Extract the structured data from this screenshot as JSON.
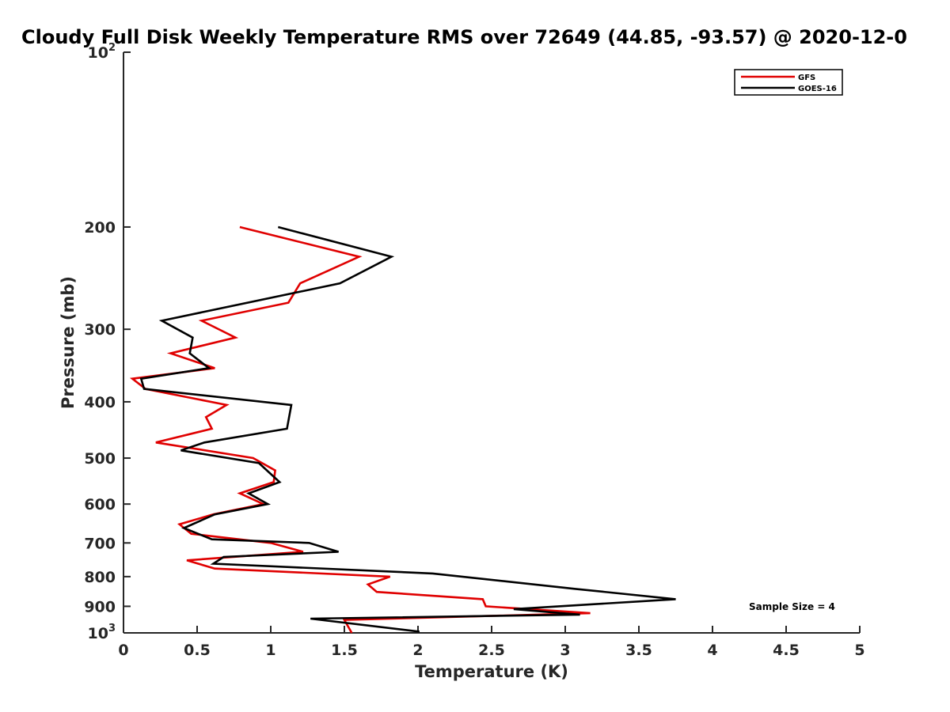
{
  "chart_data": {
    "type": "line",
    "title": "Cloudy Full Disk Weekly Temperature RMS over 72649 (44.85, -93.57) @ 2020-12-0",
    "xlabel": "Temperature (K)",
    "ylabel": "Pressure (mb)",
    "xlim": [
      0,
      5
    ],
    "ylim": [
      1000,
      100
    ],
    "y_scale": "log",
    "y_reversed": true,
    "grid": false,
    "legend_position": "top-right",
    "x_ticks": [
      0,
      0.5,
      1,
      1.5,
      2,
      2.5,
      3,
      3.5,
      4,
      4.5,
      5
    ],
    "x_tick_labels": [
      "0",
      "0.5",
      "1",
      "1.5",
      "2",
      "2.5",
      "3",
      "3.5",
      "4",
      "4.5",
      "5"
    ],
    "y_ticks": [
      {
        "value": 100,
        "base": "10",
        "exp": "2"
      },
      {
        "value": 200,
        "label": "200"
      },
      {
        "value": 300,
        "label": "300"
      },
      {
        "value": 400,
        "label": "400"
      },
      {
        "value": 500,
        "label": "500"
      },
      {
        "value": 600,
        "label": "600"
      },
      {
        "value": 700,
        "label": "700"
      },
      {
        "value": 800,
        "label": "800"
      },
      {
        "value": 900,
        "label": "900"
      },
      {
        "value": 1000,
        "base": "10",
        "exp": "3"
      }
    ],
    "annotation": "Sample Size = 4",
    "series": [
      {
        "name": "GFS",
        "color": "#e00000",
        "points": [
          {
            "x": 0.79,
            "y": 200
          },
          {
            "x": 1.6,
            "y": 225
          },
          {
            "x": 1.2,
            "y": 250
          },
          {
            "x": 1.12,
            "y": 270
          },
          {
            "x": 0.53,
            "y": 290
          },
          {
            "x": 0.76,
            "y": 310
          },
          {
            "x": 0.32,
            "y": 330
          },
          {
            "x": 0.62,
            "y": 350
          },
          {
            "x": 0.06,
            "y": 365
          },
          {
            "x": 0.15,
            "y": 380
          },
          {
            "x": 0.7,
            "y": 405
          },
          {
            "x": 0.56,
            "y": 425
          },
          {
            "x": 0.6,
            "y": 445
          },
          {
            "x": 0.22,
            "y": 470
          },
          {
            "x": 0.88,
            "y": 500
          },
          {
            "x": 1.03,
            "y": 525
          },
          {
            "x": 1.02,
            "y": 550
          },
          {
            "x": 0.79,
            "y": 575
          },
          {
            "x": 0.95,
            "y": 600
          },
          {
            "x": 0.61,
            "y": 625
          },
          {
            "x": 0.38,
            "y": 650
          },
          {
            "x": 0.46,
            "y": 675
          },
          {
            "x": 1.0,
            "y": 700
          },
          {
            "x": 1.22,
            "y": 725
          },
          {
            "x": 0.43,
            "y": 750
          },
          {
            "x": 0.62,
            "y": 775
          },
          {
            "x": 1.81,
            "y": 800
          },
          {
            "x": 1.66,
            "y": 825
          },
          {
            "x": 1.72,
            "y": 850
          },
          {
            "x": 2.44,
            "y": 875
          },
          {
            "x": 2.46,
            "y": 900
          },
          {
            "x": 3.17,
            "y": 925
          },
          {
            "x": 1.5,
            "y": 950
          },
          {
            "x": 1.55,
            "y": 1000
          }
        ]
      },
      {
        "name": "GOES-16",
        "color": "#000000",
        "points": [
          {
            "x": 1.05,
            "y": 200
          },
          {
            "x": 1.82,
            "y": 225
          },
          {
            "x": 1.47,
            "y": 250
          },
          {
            "x": 0.26,
            "y": 290
          },
          {
            "x": 0.47,
            "y": 310
          },
          {
            "x": 0.45,
            "y": 330
          },
          {
            "x": 0.58,
            "y": 350
          },
          {
            "x": 0.12,
            "y": 365
          },
          {
            "x": 0.14,
            "y": 380
          },
          {
            "x": 1.14,
            "y": 405
          },
          {
            "x": 1.11,
            "y": 445
          },
          {
            "x": 0.55,
            "y": 470
          },
          {
            "x": 0.39,
            "y": 485
          },
          {
            "x": 0.92,
            "y": 510
          },
          {
            "x": 1.06,
            "y": 550
          },
          {
            "x": 0.85,
            "y": 575
          },
          {
            "x": 0.98,
            "y": 600
          },
          {
            "x": 0.62,
            "y": 625
          },
          {
            "x": 0.41,
            "y": 660
          },
          {
            "x": 0.6,
            "y": 690
          },
          {
            "x": 1.26,
            "y": 700
          },
          {
            "x": 1.46,
            "y": 725
          },
          {
            "x": 0.68,
            "y": 740
          },
          {
            "x": 0.61,
            "y": 760
          },
          {
            "x": 2.1,
            "y": 790
          },
          {
            "x": 3.07,
            "y": 840
          },
          {
            "x": 3.75,
            "y": 875
          },
          {
            "x": 2.65,
            "y": 910
          },
          {
            "x": 3.1,
            "y": 930
          },
          {
            "x": 1.27,
            "y": 945
          },
          {
            "x": 2.01,
            "y": 995
          }
        ]
      }
    ]
  }
}
